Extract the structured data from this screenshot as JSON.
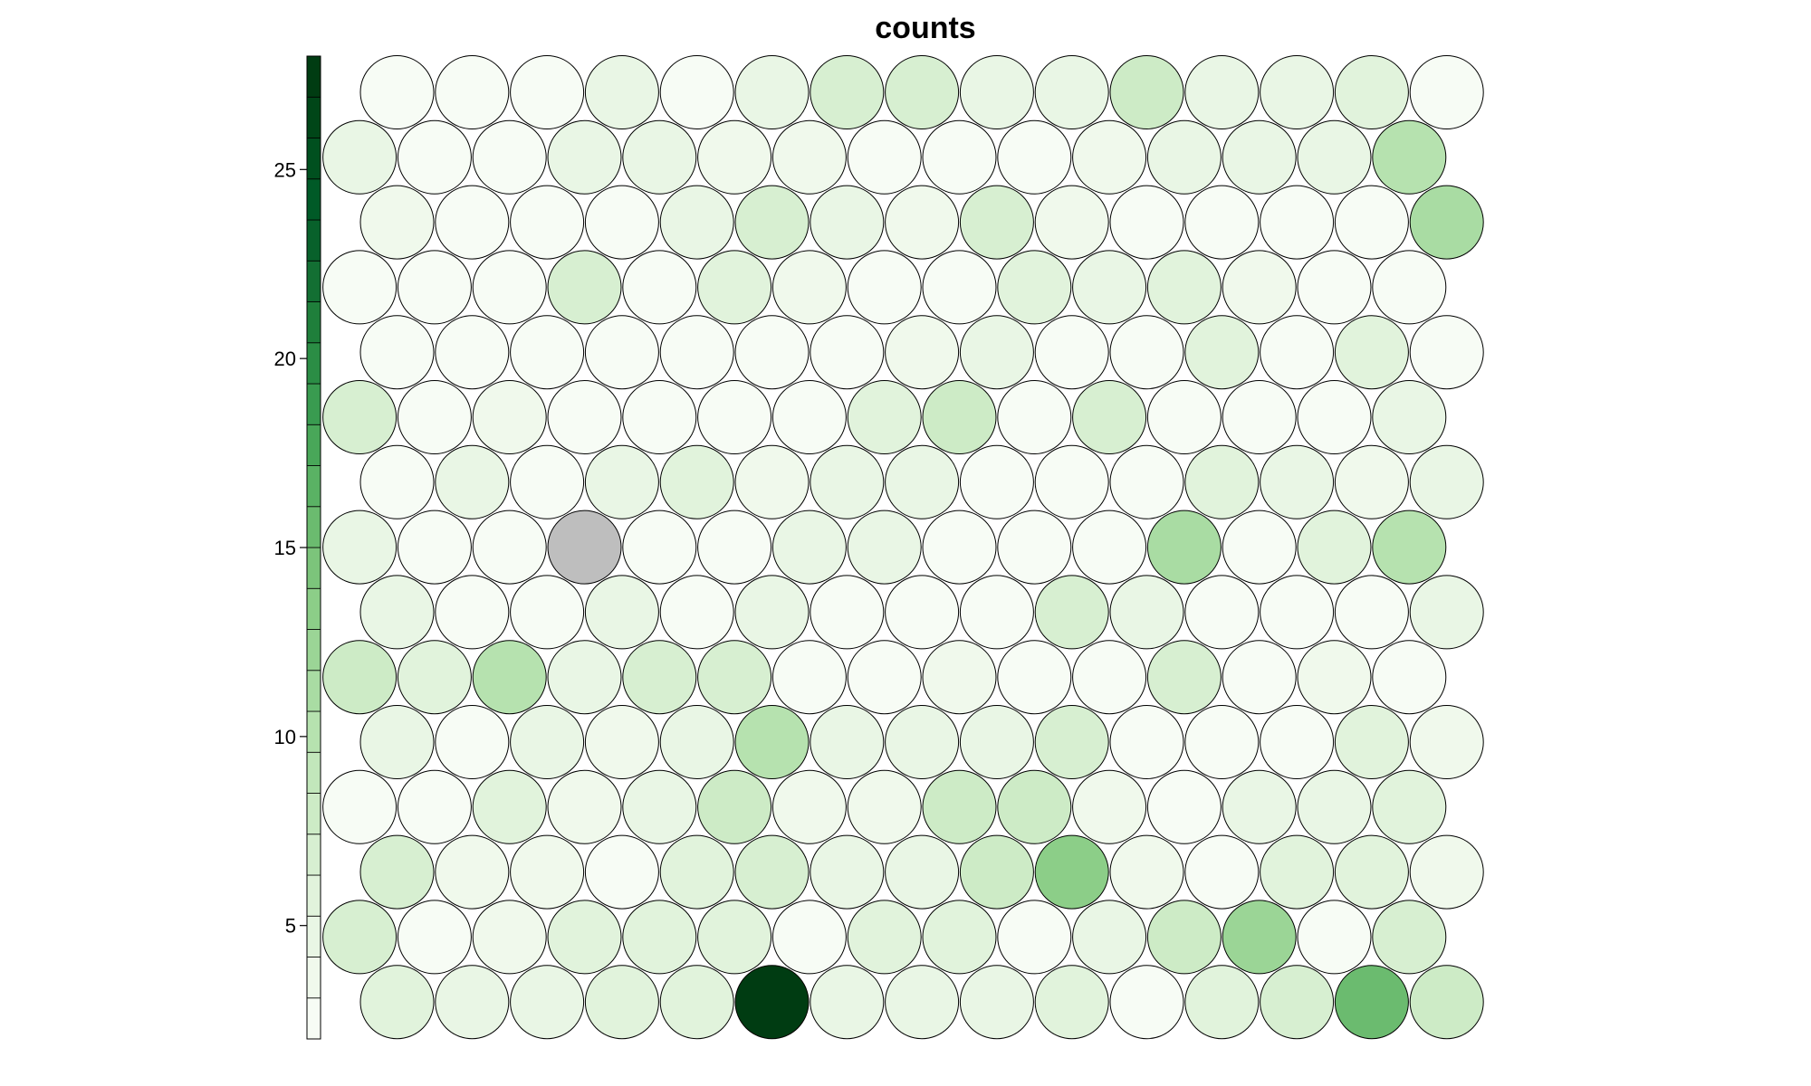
{
  "chart_data": {
    "type": "heatmap",
    "title": "counts",
    "layout": "hexagonal",
    "grid": {
      "rows": 15,
      "cols": 15,
      "empty_value_color": "#bebebe"
    },
    "colorbar": {
      "position": "left",
      "min": 2,
      "max": 28,
      "ticks": [
        "5",
        "10",
        "15",
        "20",
        "25"
      ],
      "tick_values": [
        5,
        10,
        15,
        20,
        25
      ],
      "colors": [
        "#f7fcf5",
        "#f0f9ec",
        "#e9f6e5",
        "#e1f3dc",
        "#d7efd1",
        "#cdebc6",
        "#c2e7bb",
        "#b6e2af",
        "#a9dca3",
        "#9bd596",
        "#8cce88",
        "#7cc47b",
        "#6bbb6f",
        "#5ab264",
        "#49a759",
        "#399b50",
        "#2b8d45",
        "#1f7f3b",
        "#136f33",
        "#08612b",
        "#005a27",
        "#00501f",
        "#004618",
        "#003c12"
      ]
    },
    "values": [
      [
        3,
        3,
        3,
        5,
        3,
        5,
        7,
        7,
        5,
        5,
        8,
        5,
        5,
        6,
        3
      ],
      [
        5,
        1,
        3,
        5,
        5,
        4,
        4,
        3,
        3,
        3,
        4,
        5,
        5,
        5,
        10
      ],
      [
        4,
        3,
        3,
        3,
        5,
        7,
        5,
        4,
        7,
        4,
        3,
        1,
        3,
        1,
        11
      ],
      [
        3,
        3,
        1,
        7,
        3,
        6,
        4,
        3,
        1,
        6,
        5,
        6,
        4,
        3,
        3
      ],
      [
        3,
        1,
        3,
        3,
        1,
        1,
        3,
        4,
        5,
        3,
        3,
        6,
        3,
        6,
        3
      ],
      [
        7,
        3,
        4,
        3,
        1,
        3,
        1,
        6,
        8,
        3,
        7,
        3,
        1,
        1,
        5
      ],
      [
        1,
        5,
        3,
        5,
        6,
        4,
        5,
        5,
        1,
        1,
        3,
        6,
        5,
        4,
        5
      ],
      [
        5,
        3,
        3,
        null,
        1,
        1,
        5,
        5,
        3,
        3,
        3,
        11,
        3,
        6,
        10
      ],
      [
        5,
        3,
        3,
        5,
        3,
        5,
        1,
        3,
        3,
        7,
        5,
        3,
        1,
        1,
        5
      ],
      [
        8,
        6,
        10,
        5,
        7,
        7,
        3,
        3,
        4,
        3,
        3,
        7,
        1,
        4,
        3
      ],
      [
        5,
        3,
        5,
        4,
        5,
        10,
        5,
        5,
        5,
        7,
        3,
        3,
        3,
        6,
        4
      ],
      [
        3,
        3,
        6,
        4,
        5,
        8,
        4,
        4,
        8,
        8,
        4,
        1,
        5,
        5,
        6
      ],
      [
        7,
        4,
        4,
        3,
        6,
        7,
        5,
        5,
        8,
        13,
        4,
        1,
        6,
        6,
        4
      ],
      [
        7,
        1,
        4,
        6,
        6,
        6,
        1,
        6,
        6,
        3,
        5,
        8,
        12,
        3,
        7
      ],
      [
        6,
        5,
        5,
        6,
        6,
        28,
        5,
        5,
        5,
        6,
        3,
        6,
        7,
        16,
        8
      ]
    ]
  }
}
